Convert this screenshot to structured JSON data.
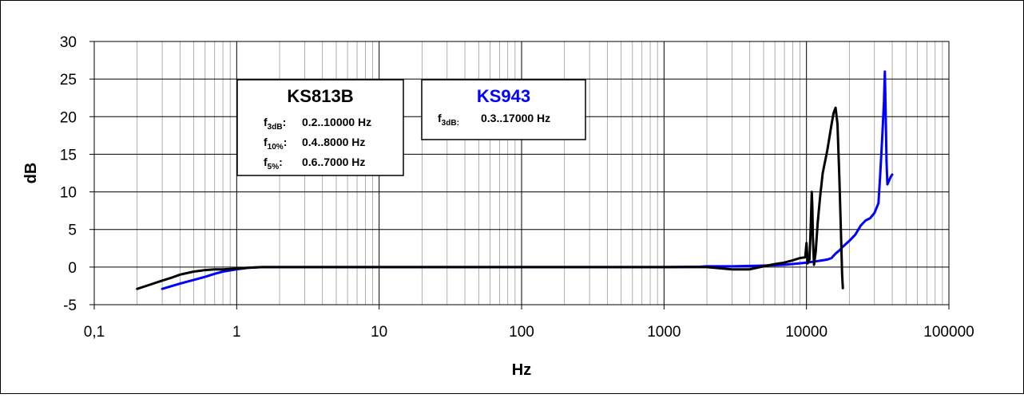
{
  "chart_data": {
    "type": "line",
    "title": "",
    "xlabel": "Hz",
    "ylabel": "dB",
    "xscale": "log",
    "xlim": [
      0.1,
      100000
    ],
    "ylim": [
      -5,
      30
    ],
    "x_ticks": [
      0.1,
      1,
      10,
      100,
      1000,
      10000,
      100000
    ],
    "x_tick_labels": [
      "0,1",
      "1",
      "10",
      "100",
      "1000",
      "10000",
      "100000"
    ],
    "y_ticks": [
      -5,
      0,
      5,
      10,
      15,
      20,
      25,
      30
    ],
    "y_tick_labels": [
      "-5",
      "0",
      "5",
      "10",
      "15",
      "20",
      "25",
      "30"
    ],
    "grid": true,
    "legend": "none",
    "series": [
      {
        "color": "#0000ff",
        "x": [
          0.3,
          0.4,
          0.5,
          0.6,
          0.7,
          0.8,
          1.0,
          1.2,
          1.5,
          2,
          5,
          100,
          1000,
          1800,
          2000,
          3000,
          5000,
          7000,
          9000,
          10000,
          11000,
          12000,
          13000,
          14000,
          15000,
          16000,
          17000,
          18000,
          20000,
          22000,
          24000,
          26000,
          28000,
          30000,
          32000,
          33000,
          34000,
          35000,
          35500,
          36000,
          36500,
          37000,
          38000,
          39000,
          40000
        ],
        "y": [
          -2.9,
          -2.2,
          -1.7,
          -1.3,
          -0.9,
          -0.6,
          -0.3,
          -0.1,
          0,
          0,
          0,
          0,
          0,
          0.05,
          0.1,
          0.1,
          0.2,
          0.3,
          0.5,
          0.6,
          0.7,
          0.8,
          0.9,
          1.0,
          1.2,
          1.8,
          2.2,
          2.7,
          3.5,
          4.3,
          5.5,
          6.2,
          6.5,
          7.2,
          8.5,
          12.5,
          17.0,
          22.0,
          26.0,
          20.0,
          14.0,
          11.0,
          11.5,
          12.0,
          12.3
        ]
      },
      {
        "color": "#000000",
        "x": [
          0.2,
          0.25,
          0.3,
          0.35,
          0.4,
          0.5,
          0.6,
          0.7,
          0.8,
          1.0,
          1.2,
          1.5,
          1.7,
          2,
          5,
          100,
          1000,
          2000,
          3000,
          4000,
          5000,
          6000,
          7000,
          8000,
          9000,
          9800,
          10000,
          10200,
          10500,
          10700,
          10900,
          11000,
          11100,
          11300,
          11600,
          12000,
          12500,
          13000,
          14000,
          15000,
          15500,
          16000,
          16500,
          17000,
          17500,
          17800,
          18000
        ],
        "y": [
          -2.9,
          -2.3,
          -1.8,
          -1.4,
          -1.0,
          -0.6,
          -0.4,
          -0.3,
          -0.3,
          -0.2,
          -0.1,
          0,
          0,
          0,
          0,
          0,
          0,
          0,
          -0.3,
          -0.3,
          0.1,
          0.4,
          0.6,
          0.9,
          1.2,
          1.3,
          3.2,
          0.5,
          1.0,
          5.0,
          10.0,
          8.0,
          4.0,
          0.3,
          2.0,
          6.0,
          9.5,
          12.5,
          15.5,
          19.0,
          20.5,
          21.2,
          19.0,
          12.0,
          4.0,
          -1.0,
          -2.8
        ]
      }
    ],
    "annotations": [
      {
        "title": "KS813B",
        "title_color": "#000000",
        "rows": [
          {
            "sym": "f",
            "sub": "3dB",
            "colon": ":",
            "value": "0.2..10000 Hz"
          },
          {
            "sym": "f",
            "sub": "10%",
            "colon": ":",
            "value": "0.4..8000 Hz"
          },
          {
            "sym": "f",
            "sub": "5%",
            "colon": ":",
            "value": "0.6..7000 Hz"
          }
        ]
      },
      {
        "title": "KS943",
        "title_color": "#0000ff",
        "rows": [
          {
            "sym": "f",
            "sub": "3dB:",
            "colon": "",
            "value": "0.3..17000 Hz"
          }
        ]
      }
    ]
  }
}
